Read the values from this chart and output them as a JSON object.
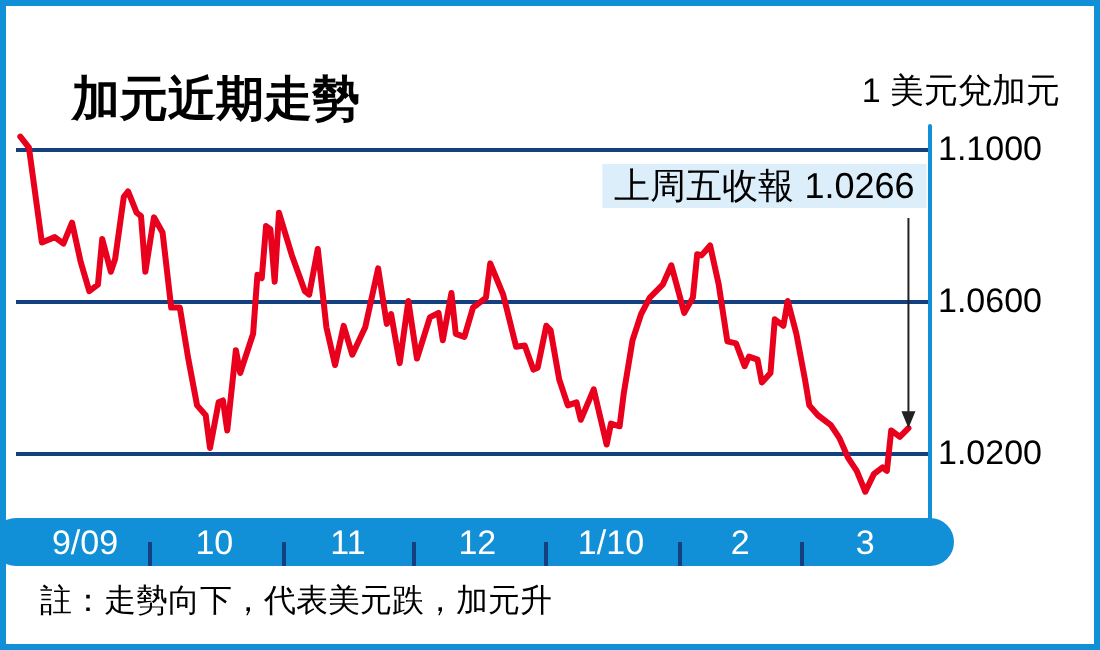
{
  "chart_data": {
    "type": "line",
    "title": "加元近期走勢",
    "ylabel": "1 美元兌加元",
    "x": [
      "2009-09-01",
      "2009-09-03",
      "2009-09-06",
      "2009-09-09",
      "2009-09-11",
      "2009-09-13",
      "2009-09-15",
      "2009-09-17",
      "2009-09-19",
      "2009-09-20",
      "2009-09-22",
      "2009-09-23",
      "2009-09-25",
      "2009-09-26",
      "2009-09-28",
      "2009-09-29",
      "2009-09-30",
      "2009-10-02",
      "2009-10-04",
      "2009-10-06",
      "2009-10-08",
      "2009-10-10",
      "2009-10-12",
      "2009-10-14",
      "2009-10-15",
      "2009-10-17",
      "2009-10-18",
      "2009-10-19",
      "2009-10-21",
      "2009-10-22",
      "2009-10-25",
      "2009-10-26",
      "2009-10-27",
      "2009-10-28",
      "2009-10-29",
      "2009-10-30",
      "2009-10-31",
      "2009-11-03",
      "2009-11-06",
      "2009-11-07",
      "2009-11-09",
      "2009-11-11",
      "2009-11-13",
      "2009-11-15",
      "2009-11-17",
      "2009-11-20",
      "2009-11-23",
      "2009-11-25",
      "2009-11-26",
      "2009-11-28",
      "2009-11-30",
      "2009-12-02",
      "2009-12-05",
      "2009-12-07",
      "2009-12-08",
      "2009-12-10",
      "2009-12-11",
      "2009-12-13",
      "2009-12-15",
      "2009-12-16",
      "2009-12-18",
      "2009-12-19",
      "2009-12-22",
      "2009-12-25",
      "2009-12-27",
      "2009-12-29",
      "2009-12-30",
      "2010-01-01",
      "2010-01-02",
      "2010-01-04",
      "2010-01-06",
      "2010-01-08",
      "2010-01-09",
      "2010-01-12",
      "2010-01-15",
      "2010-01-16",
      "2010-01-18",
      "2010-01-19",
      "2010-01-21",
      "2010-01-23",
      "2010-01-25",
      "2010-01-28",
      "2010-01-30",
      "2010-02-02",
      "2010-02-04",
      "2010-02-05",
      "2010-02-06",
      "2010-02-08",
      "2010-02-10",
      "2010-02-12",
      "2010-02-14",
      "2010-02-16",
      "2010-02-17",
      "2010-02-19",
      "2010-02-20",
      "2010-02-22",
      "2010-02-23",
      "2010-02-25",
      "2010-02-26",
      "2010-02-28",
      "2010-03-02",
      "2010-03-03",
      "2010-03-05",
      "2010-03-08",
      "2010-03-10",
      "2010-03-12",
      "2010-03-14",
      "2010-03-16",
      "2010-03-18",
      "2010-03-20",
      "2010-03-21",
      "2010-03-22",
      "2010-03-24",
      "2010-03-26"
    ],
    "series": [
      {
        "color": "#e8001c",
        "values": [
          1.1032,
          1.1003,
          1.0754,
          1.0768,
          1.0751,
          1.0806,
          1.0703,
          1.0626,
          1.0643,
          1.0763,
          1.0677,
          1.0711,
          1.0874,
          1.0888,
          1.0832,
          1.0823,
          1.0677,
          1.082,
          1.078,
          1.0583,
          1.0583,
          1.0446,
          1.0326,
          1.03,
          1.0214,
          1.0334,
          1.0339,
          1.026,
          1.0471,
          1.0411,
          1.0514,
          1.0669,
          1.066,
          1.0797,
          1.0789,
          1.0651,
          1.0832,
          1.072,
          1.0626,
          1.0617,
          1.0737,
          1.0531,
          1.0432,
          1.0535,
          1.0459,
          1.0531,
          1.0686,
          1.054,
          1.0566,
          1.0437,
          1.06,
          1.0449,
          1.0557,
          1.0569,
          1.0497,
          1.0621,
          1.0514,
          1.0506,
          1.0583,
          1.0591,
          1.0609,
          1.0699,
          1.0617,
          1.048,
          1.0483,
          1.042,
          1.0425,
          1.0535,
          1.0523,
          1.0394,
          1.0326,
          1.0334,
          1.0288,
          1.0368,
          1.0223,
          1.0278,
          1.0271,
          1.036,
          1.0497,
          1.0566,
          1.0609,
          1.0643,
          1.0694,
          1.0569,
          1.0609,
          1.0723,
          1.072,
          1.0746,
          1.0643,
          1.0494,
          1.0489,
          1.0429,
          1.0454,
          1.0446,
          1.0386,
          1.0411,
          1.0552,
          1.0535,
          1.06,
          1.0514,
          1.0394,
          1.0326,
          1.03,
          1.0274,
          1.024,
          1.0188,
          1.0154,
          1.0099,
          1.0146,
          1.0163,
          1.0154,
          1.026,
          1.0243,
          1.0266
        ]
      }
    ],
    "xlim": [
      "2009-08-31",
      "2010-03-31"
    ],
    "xticks": [
      {
        "value": "2009-09-16",
        "label": "9/09"
      },
      {
        "value": "2009-10-01",
        "label": null
      },
      {
        "value": "2009-10-16",
        "label": "10"
      },
      {
        "value": "2009-11-01",
        "label": null
      },
      {
        "value": "2009-11-16",
        "label": "11"
      },
      {
        "value": "2009-12-01",
        "label": null
      },
      {
        "value": "2009-12-16",
        "label": "12"
      },
      {
        "value": "2010-01-01",
        "label": null
      },
      {
        "value": "2010-01-16",
        "label": "1/10"
      },
      {
        "value": "2010-02-01",
        "label": null
      },
      {
        "value": "2010-02-15",
        "label": "2"
      },
      {
        "value": "2010-03-01",
        "label": null
      },
      {
        "value": "2010-03-16",
        "label": "3"
      }
    ],
    "ylim": [
      1.003,
      1.106
    ],
    "yticks": [
      {
        "value": 1.02,
        "label": "1.0200"
      },
      {
        "value": 1.06,
        "label": "1.0600"
      },
      {
        "value": 1.1,
        "label": "1.1000"
      }
    ],
    "grid": "y",
    "marker": "none",
    "line_style": "solid",
    "annotations": [
      "註：走勢向下，代表美元跌，加元升",
      "上周五收報 1.0266"
    ]
  }
}
